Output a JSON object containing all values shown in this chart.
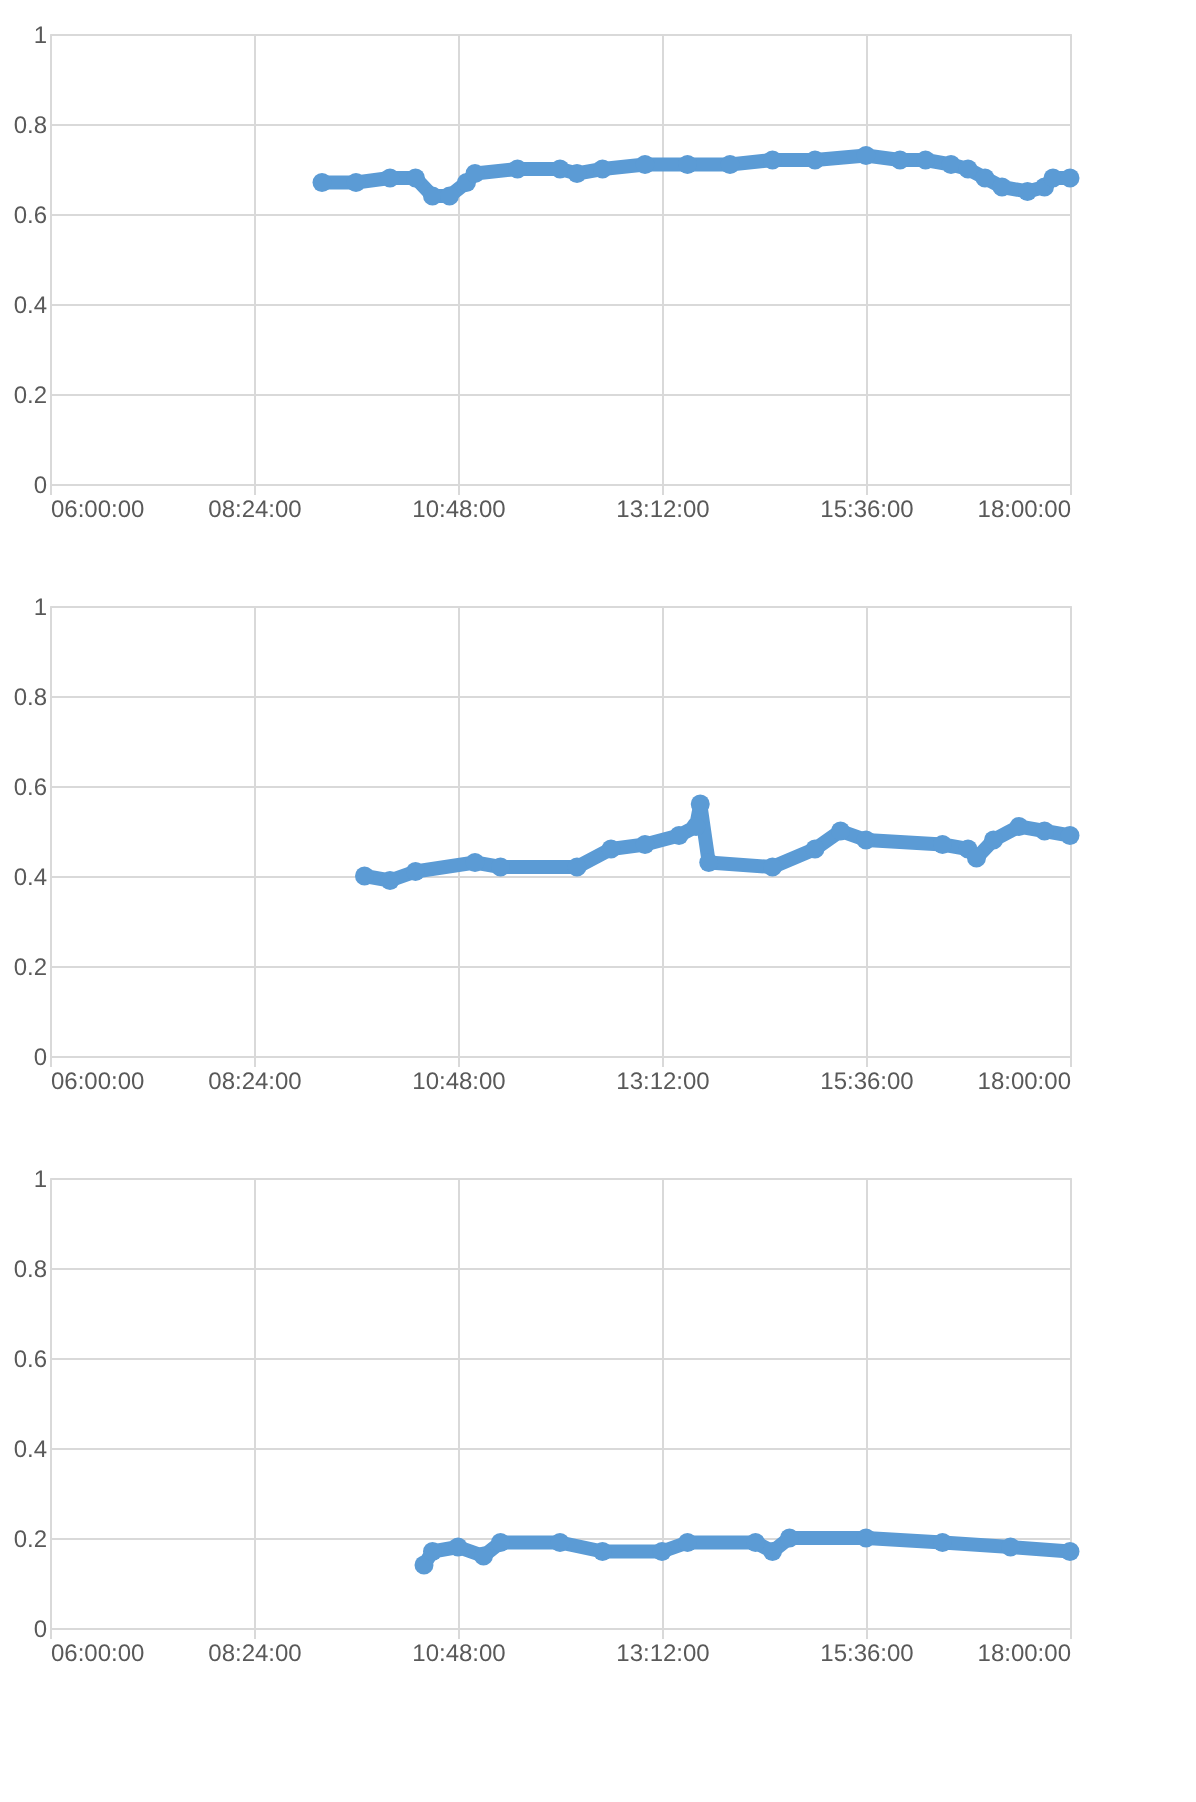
{
  "chart_data": [
    {
      "type": "line",
      "marker": "circle",
      "grid": true,
      "xlim": [
        6,
        18
      ],
      "ylim": [
        0,
        1
      ],
      "xticks": [
        {
          "value": 6,
          "label": "06:00:00"
        },
        {
          "value": 8.4,
          "label": "08:24:00"
        },
        {
          "value": 10.8,
          "label": "10:48:00"
        },
        {
          "value": 13.2,
          "label": "13:12:00"
        },
        {
          "value": 15.6,
          "label": "15:36:00"
        },
        {
          "value": 18,
          "label": "18:00:00"
        }
      ],
      "yticks": [
        0,
        0.2,
        0.4,
        0.6,
        0.8,
        1
      ],
      "series": [
        {
          "color": "#5b9bd5",
          "line_style": "solid",
          "x": [
            9.2,
            9.6,
            10.0,
            10.3,
            10.5,
            10.7,
            10.9,
            11.0,
            11.5,
            12.0,
            12.2,
            12.5,
            13.0,
            13.5,
            14.0,
            14.5,
            15.0,
            15.6,
            16.0,
            16.3,
            16.6,
            16.8,
            17.0,
            17.2,
            17.5,
            17.7,
            17.8,
            18.0
          ],
          "values": [
            0.67,
            0.67,
            0.68,
            0.68,
            0.64,
            0.64,
            0.67,
            0.69,
            0.7,
            0.7,
            0.69,
            0.7,
            0.71,
            0.71,
            0.71,
            0.72,
            0.72,
            0.73,
            0.72,
            0.72,
            0.71,
            0.7,
            0.68,
            0.66,
            0.65,
            0.66,
            0.68,
            0.68
          ]
        }
      ]
    },
    {
      "type": "line",
      "marker": "circle",
      "grid": true,
      "xlim": [
        6,
        18
      ],
      "ylim": [
        0,
        1
      ],
      "xticks": [
        {
          "value": 6,
          "label": "06:00:00"
        },
        {
          "value": 8.4,
          "label": "08:24:00"
        },
        {
          "value": 10.8,
          "label": "10:48:00"
        },
        {
          "value": 13.2,
          "label": "13:12:00"
        },
        {
          "value": 15.6,
          "label": "15:36:00"
        },
        {
          "value": 18,
          "label": "18:00:00"
        }
      ],
      "yticks": [
        0,
        0.2,
        0.4,
        0.6,
        0.8,
        1
      ],
      "series": [
        {
          "color": "#5b9bd5",
          "line_style": "solid",
          "x": [
            9.7,
            10.0,
            10.3,
            11.0,
            11.3,
            12.2,
            12.6,
            13.0,
            13.4,
            13.6,
            13.65,
            13.75,
            14.5,
            15.0,
            15.3,
            15.6,
            16.5,
            16.8,
            16.9,
            17.1,
            17.4,
            17.7,
            18.0
          ],
          "values": [
            0.4,
            0.39,
            0.41,
            0.43,
            0.42,
            0.42,
            0.46,
            0.47,
            0.49,
            0.51,
            0.56,
            0.43,
            0.42,
            0.46,
            0.5,
            0.48,
            0.47,
            0.46,
            0.44,
            0.48,
            0.51,
            0.5,
            0.49
          ]
        }
      ]
    },
    {
      "type": "line",
      "marker": "circle",
      "grid": true,
      "xlim": [
        6,
        18
      ],
      "ylim": [
        0,
        1
      ],
      "xticks": [
        {
          "value": 6,
          "label": "06:00:00"
        },
        {
          "value": 8.4,
          "label": "08:24:00"
        },
        {
          "value": 10.8,
          "label": "10:48:00"
        },
        {
          "value": 13.2,
          "label": "13:12:00"
        },
        {
          "value": 15.6,
          "label": "15:36:00"
        },
        {
          "value": 18,
          "label": "18:00:00"
        }
      ],
      "yticks": [
        0,
        0.2,
        0.4,
        0.6,
        0.8,
        1
      ],
      "series": [
        {
          "color": "#5b9bd5",
          "line_style": "solid",
          "x": [
            10.4,
            10.5,
            10.8,
            11.1,
            11.3,
            12.0,
            12.5,
            13.2,
            13.5,
            14.3,
            14.5,
            14.7,
            15.6,
            16.5,
            17.3,
            18.0
          ],
          "values": [
            0.14,
            0.17,
            0.18,
            0.16,
            0.19,
            0.19,
            0.17,
            0.17,
            0.19,
            0.19,
            0.17,
            0.2,
            0.2,
            0.19,
            0.18,
            0.17
          ]
        }
      ]
    }
  ]
}
